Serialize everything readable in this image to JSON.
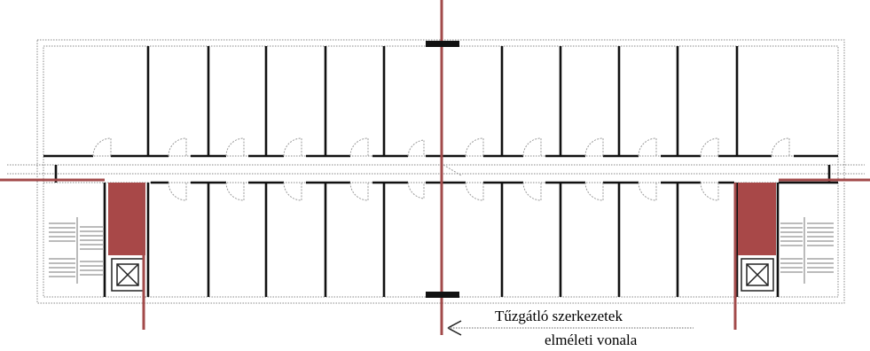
{
  "annotation": {
    "line1": "Tűzgátló szerkezetek",
    "line2": "elméleti vonala"
  },
  "colors": {
    "fire_line": "#a24a4a",
    "fire_zone": "#a84848",
    "partition": "#111111",
    "outline": "#888888"
  }
}
